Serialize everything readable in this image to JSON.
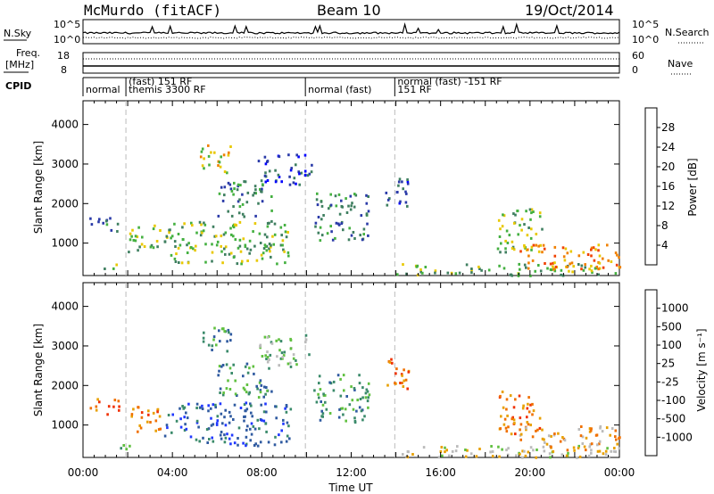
{
  "header": {
    "station": "McMurdo (fitACF)",
    "beam": "Beam 10",
    "date": "19/Oct/2014"
  },
  "status_panels": {
    "nsky_label": "N.Sky",
    "nsearch_label": "N.Search",
    "noise_ticks": [
      "10^5",
      "10^0"
    ],
    "freq_label_line1": "Freq.",
    "freq_label_line2": "[MHz]",
    "freq_ticks": [
      "18",
      "8"
    ],
    "nave_label": "Nave",
    "nave_ticks": [
      "60",
      "0"
    ],
    "cpid_label": "CPID",
    "cpid_segments": [
      {
        "start": 0.0,
        "end": 1.92,
        "line1": "normal",
        "line2": ""
      },
      {
        "start": 1.92,
        "end": 9.95,
        "line1": "themis 3300 RF",
        "line2": "(fast) 151 RF"
      },
      {
        "start": 9.95,
        "end": 13.95,
        "line1": "normal (fast)",
        "line2": ""
      },
      {
        "start": 13.95,
        "end": 24.0,
        "line1": "151 RF",
        "line2": "normal (fast) -151 RF"
      }
    ]
  },
  "colors": {
    "power_scale": [
      "#0000ff",
      "#2a3aa8",
      "#3f7f60",
      "#44b040",
      "#e8c800",
      "#f08000",
      "#f04000",
      "#e00000"
    ],
    "velocity_scale": [
      "#2038ff",
      "#2f5aa0",
      "#3a8a6a",
      "#60c040",
      "#bbbbbb",
      "#e8a000",
      "#f07000",
      "#f03000",
      "#e00000"
    ],
    "dashed_lines": "#bbbbbb"
  },
  "chart_data": [
    {
      "type": "heatmap",
      "name_key": "power",
      "xlabel": "",
      "ylabel": "Slant Range [km]",
      "xlim": [
        0,
        24
      ],
      "ylim": [
        180,
        4600
      ],
      "yticks": [
        "1000",
        "2000",
        "3000",
        "4000"
      ],
      "colorbar_label": "Power [dB]",
      "colorbar_ticks": [
        "4",
        "8",
        "12",
        "16",
        "20",
        "24",
        "28"
      ],
      "cpid_change_hours": [
        1.92,
        9.95,
        13.95
      ],
      "echo_regions": [
        {
          "t0": 0.2,
          "t1": 1.6,
          "r0": 1300,
          "r1": 1700,
          "level": 2
        },
        {
          "t0": 0.8,
          "t1": 1.8,
          "r0": 380,
          "r1": 520,
          "level": 3
        },
        {
          "t0": 2.0,
          "t1": 3.5,
          "r0": 800,
          "r1": 1500,
          "level": 3
        },
        {
          "t0": 5.2,
          "t1": 6.6,
          "r0": 2800,
          "r1": 3500,
          "level": 4
        },
        {
          "t0": 3.6,
          "t1": 9.3,
          "r0": 500,
          "r1": 1600,
          "level": 3
        },
        {
          "t0": 6.0,
          "t1": 8.4,
          "r0": 1700,
          "r1": 2600,
          "level": 2
        },
        {
          "t0": 7.8,
          "t1": 10.2,
          "r0": 2500,
          "r1": 3300,
          "level": 1
        },
        {
          "t0": 10.3,
          "t1": 12.8,
          "r0": 1100,
          "r1": 2300,
          "level": 2
        },
        {
          "t0": 13.5,
          "t1": 14.6,
          "r0": 1900,
          "r1": 2700,
          "level": 1
        },
        {
          "t0": 14.0,
          "t1": 24.0,
          "r0": 200,
          "r1": 500,
          "level": 3
        },
        {
          "t0": 18.5,
          "t1": 20.5,
          "r0": 800,
          "r1": 1900,
          "level": 3
        },
        {
          "t0": 19.5,
          "t1": 24.0,
          "r0": 350,
          "r1": 1000,
          "level": 5
        }
      ]
    },
    {
      "type": "heatmap",
      "name_key": "velocity",
      "xlabel": "Time UT",
      "ylabel": "Slant Range [km]",
      "xlim": [
        0,
        24
      ],
      "ylim": [
        180,
        4600
      ],
      "xticks": [
        "00:00",
        "04:00",
        "08:00",
        "12:00",
        "16:00",
        "20:00",
        "00:00"
      ],
      "yticks": [
        "1000",
        "2000",
        "3000",
        "4000"
      ],
      "colorbar_label": "Velocity [m s⁻¹]",
      "colorbar_ticks": [
        "1000",
        "500",
        "100",
        "25",
        "-25",
        "-100",
        "-500",
        "-1000"
      ],
      "cpid_change_hours": [
        1.92,
        9.95,
        13.95
      ],
      "echo_regions": [
        {
          "t0": 0.2,
          "t1": 1.6,
          "r0": 1300,
          "r1": 1700,
          "level": 6
        },
        {
          "t0": 0.8,
          "t1": 2.2,
          "r0": 380,
          "r1": 520,
          "level": 3
        },
        {
          "t0": 2.0,
          "t1": 3.5,
          "r0": 800,
          "r1": 1500,
          "level": 6
        },
        {
          "t0": 5.2,
          "t1": 6.6,
          "r0": 2800,
          "r1": 3500,
          "level": 2
        },
        {
          "t0": 3.6,
          "t1": 9.3,
          "r0": 500,
          "r1": 1600,
          "level": 1
        },
        {
          "t0": 6.0,
          "t1": 8.4,
          "r0": 1700,
          "r1": 2600,
          "level": 2
        },
        {
          "t0": 7.8,
          "t1": 10.2,
          "r0": 2500,
          "r1": 3300,
          "level": 3
        },
        {
          "t0": 10.3,
          "t1": 12.8,
          "r0": 1100,
          "r1": 2300,
          "level": 2
        },
        {
          "t0": 13.5,
          "t1": 14.6,
          "r0": 1900,
          "r1": 2700,
          "level": 6
        },
        {
          "t0": 14.0,
          "t1": 24.0,
          "r0": 200,
          "r1": 500,
          "level": 4
        },
        {
          "t0": 18.5,
          "t1": 20.5,
          "r0": 800,
          "r1": 1900,
          "level": 6
        },
        {
          "t0": 19.5,
          "t1": 24.0,
          "r0": 350,
          "r1": 1000,
          "level": 5
        }
      ]
    }
  ]
}
